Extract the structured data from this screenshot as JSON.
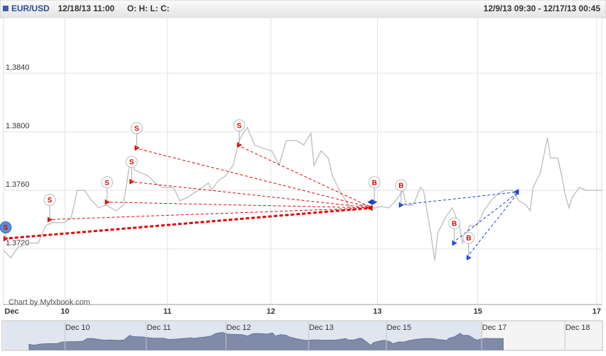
{
  "chart_data": {
    "type": "line",
    "symbol": "EUR/USD",
    "timestamp": "12/18/13 11:00",
    "ohlc": "O: H: L: C:",
    "range": "12/9/13 09:30 - 12/17/13 00:45",
    "credit": "Chart by Myfxbook.com",
    "xlim": [
      0.4,
      6.24
    ],
    "ylim": [
      1.3682,
      1.3878
    ],
    "xticks": [
      {
        "value": 0.48,
        "label": "Dec"
      },
      {
        "value": 1,
        "label": "10"
      },
      {
        "value": 2,
        "label": "11"
      },
      {
        "value": 3.01,
        "label": "12"
      },
      {
        "value": 4.05,
        "label": "13"
      },
      {
        "value": 5.03,
        "label": "15"
      },
      {
        "value": 6.19,
        "label": "17"
      }
    ],
    "yticks": [
      {
        "value": 1.372,
        "label": "1.3720"
      },
      {
        "value": 1.376,
        "label": "1.3760"
      },
      {
        "value": 1.38,
        "label": "1.3800"
      },
      {
        "value": 1.384,
        "label": "1.3840"
      }
    ],
    "grid": true,
    "series": [
      {
        "color": "#c4c4c4",
        "x": [
          0.4,
          0.47,
          0.54,
          0.64,
          0.74,
          0.81,
          0.88,
          0.99,
          1.06,
          1.12,
          1.19,
          1.26,
          1.33,
          1.4,
          1.5,
          1.57,
          1.64,
          1.68,
          1.74,
          1.81,
          1.88,
          1.95,
          2.06,
          2.12,
          2.19,
          2.3,
          2.4,
          2.43,
          2.5,
          2.57,
          2.64,
          2.7,
          2.74,
          2.78,
          2.85,
          2.92,
          3.02,
          3.09,
          3.16,
          3.26,
          3.33,
          3.4,
          3.43,
          3.5,
          3.57,
          3.61,
          3.68,
          3.74,
          3.81,
          3.88,
          3.95,
          4.02,
          4.09,
          4.16,
          4.23,
          4.3,
          4.33,
          4.4,
          4.47,
          4.5,
          4.57,
          4.61,
          4.64,
          4.71,
          4.78,
          4.85,
          4.88,
          4.95,
          5.02,
          5.09,
          5.16,
          5.23,
          5.3,
          5.37,
          5.43,
          5.5,
          5.54,
          5.57,
          5.64,
          5.71,
          5.74,
          5.81,
          5.85,
          5.88,
          5.92,
          5.95,
          6.02,
          6.09,
          6.16,
          6.24
        ],
        "values": [
          1.3719,
          1.3714,
          1.3721,
          1.3724,
          1.3724,
          1.3736,
          1.3738,
          1.3738,
          1.3741,
          1.376,
          1.376,
          1.3753,
          1.3748,
          1.375,
          1.3746,
          1.375,
          1.3782,
          1.3774,
          1.3772,
          1.377,
          1.3765,
          1.3762,
          1.3762,
          1.3753,
          1.3755,
          1.376,
          1.3765,
          1.376,
          1.3767,
          1.377,
          1.3777,
          1.3794,
          1.3799,
          1.3803,
          1.3791,
          1.3789,
          1.3787,
          1.3777,
          1.3794,
          1.3794,
          1.3791,
          1.3799,
          1.3777,
          1.3787,
          1.3782,
          1.377,
          1.376,
          1.3753,
          1.3746,
          1.375,
          1.375,
          1.3748,
          1.3749,
          1.3748,
          1.3753,
          1.376,
          1.375,
          1.375,
          1.3762,
          1.376,
          1.3731,
          1.3712,
          1.3731,
          1.3741,
          1.3748,
          1.3736,
          1.3724,
          1.3736,
          1.3736,
          1.3746,
          1.3753,
          1.3758,
          1.376,
          1.376,
          1.3753,
          1.375,
          1.3746,
          1.3762,
          1.3772,
          1.3796,
          1.3782,
          1.3782,
          1.377,
          1.3758,
          1.3748,
          1.3755,
          1.3762,
          1.376,
          1.376,
          1.376
        ]
      }
    ],
    "trades": [
      {
        "label": "S",
        "color": "#e00000",
        "marker_color": "#5b8fd6",
        "highlight": true,
        "open_x": 0.4,
        "open_price": 1.3727,
        "close_x": 4.0,
        "close_price": 1.3748
      },
      {
        "label": "S",
        "color": "#e00000",
        "open_x": 0.83,
        "open_price": 1.374,
        "close_x": 4.0,
        "close_price": 1.3748
      },
      {
        "label": "S",
        "color": "#e00000",
        "open_x": 1.39,
        "open_price": 1.3752,
        "close_x": 4.0,
        "close_price": 1.3748
      },
      {
        "label": "S",
        "color": "#e00000",
        "open_x": 1.63,
        "open_price": 1.3766,
        "close_x": 4.0,
        "close_price": 1.3748
      },
      {
        "label": "S",
        "color": "#e00000",
        "open_x": 1.68,
        "open_price": 1.3789,
        "close_x": 4.0,
        "close_price": 1.3748
      },
      {
        "label": "S",
        "color": "#e00000",
        "open_x": 2.68,
        "open_price": 1.3791,
        "close_x": 4.0,
        "close_price": 1.3748
      },
      {
        "label": "B",
        "color": "#1a3fd0",
        "open_x": 4.0,
        "open_price": 1.3752,
        "close_x": 4.0,
        "close_price": 1.3752
      },
      {
        "label": "B",
        "color": "#1a3fd0",
        "open_x": 4.26,
        "open_price": 1.375,
        "close_x": 5.43,
        "close_price": 1.3759
      },
      {
        "label": "B",
        "color": "#1a3fd0",
        "open_x": 4.78,
        "open_price": 1.3724,
        "close_x": 5.43,
        "close_price": 1.3759
      },
      {
        "label": "B",
        "color": "#1a3fd0",
        "open_x": 4.92,
        "open_price": 1.3714,
        "close_x": 5.43,
        "close_price": 1.3759
      }
    ],
    "navigator": {
      "labels": [
        "Dec 10",
        "Dec 11",
        "Dec 12",
        "Dec 13",
        "Dec 15",
        "Dec 17",
        "Dec 18"
      ]
    }
  }
}
